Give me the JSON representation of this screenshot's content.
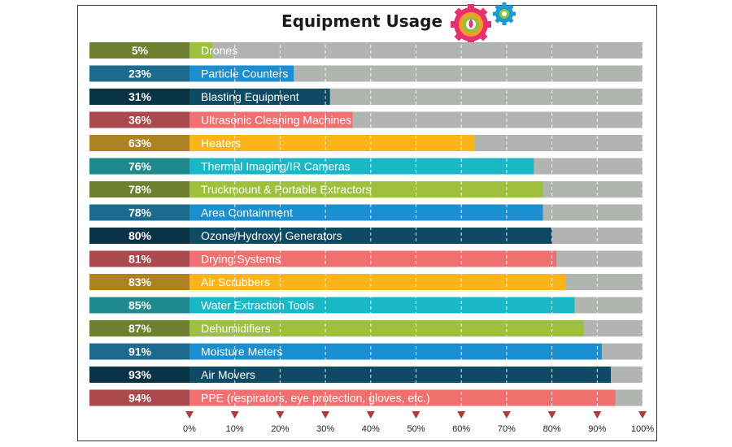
{
  "chart_data": {
    "type": "bar",
    "orientation": "horizontal",
    "title": "Equipment Usage",
    "categories": [
      "Drones",
      "Particle Counters",
      "Blasting Equipment",
      "Ultrasonic Cleaning Machines",
      "Heaters",
      "Thermal Imaging/IR Cameras",
      "Truckmount & Portable Extractors",
      "Area Containment",
      "Ozone/Hydroxyl Generators",
      "Drying Systems",
      "Air Scrubbers",
      "Water Extraction Tools",
      "Dehumidifiers",
      "Moisture Meters",
      "Air Movers",
      "PPE (respirators, eye protection, gloves, etc.)"
    ],
    "values": [
      5,
      23,
      31,
      36,
      63,
      76,
      78,
      78,
      80,
      81,
      83,
      85,
      87,
      91,
      93,
      94
    ],
    "value_labels": [
      "5%",
      "23%",
      "31%",
      "36%",
      "63%",
      "76%",
      "78%",
      "78%",
      "80%",
      "81%",
      "83%",
      "85%",
      "87%",
      "91%",
      "93%",
      "94%"
    ],
    "xlim": [
      0,
      100
    ],
    "xticks": [
      "0%",
      "10%",
      "20%",
      "30%",
      "40%",
      "50%",
      "60%",
      "70%",
      "80%",
      "90%",
      "100%"
    ],
    "grid": "vertical dashed",
    "legend": "none"
  },
  "colors": {
    "bar_fill": [
      "#9dc13d",
      "#1b8fd0",
      "#0e4a63",
      "#f07070",
      "#fbb419",
      "#1ab8c6"
    ],
    "label_fill": [
      "#6e7f2e",
      "#1d6a8f",
      "#0b3346",
      "#ab4a4e",
      "#ae8123",
      "#1f8a8e"
    ],
    "track": "#b1b4b1",
    "tick_marker": "#b03a3a"
  }
}
